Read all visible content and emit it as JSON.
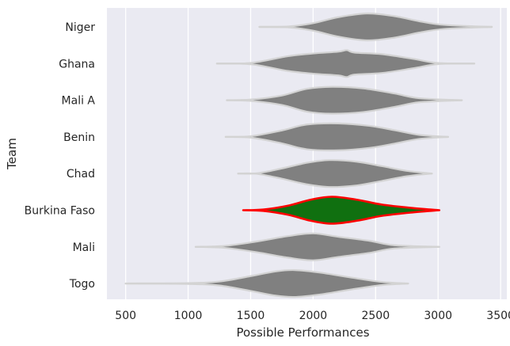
{
  "chart_data": {
    "type": "violin",
    "xlabel": "Possible Performances",
    "ylabel": "Team",
    "xlim": [
      350,
      3550
    ],
    "xticks": [
      500,
      1000,
      1500,
      2000,
      2500,
      3000,
      3500
    ],
    "grid": true,
    "colors": {
      "background": "#eaeaf2",
      "grid": "#ffffff",
      "violin_fill": "#808080",
      "violin_edge": "#d3d3d3",
      "highlight_fill": "#107010",
      "highlight_edge": "#ff0000"
    },
    "violins": [
      {
        "team": "Niger",
        "min": 1570,
        "max": 3430,
        "mode": 2430,
        "highlight": false,
        "profile": [
          [
            1570,
            0.0
          ],
          [
            1800,
            0.03
          ],
          [
            2000,
            0.28
          ],
          [
            2200,
            0.72
          ],
          [
            2430,
            1.0
          ],
          [
            2650,
            0.8
          ],
          [
            2850,
            0.42
          ],
          [
            3050,
            0.15
          ],
          [
            3430,
            0.0
          ]
        ]
      },
      {
        "team": "Ghana",
        "min": 1230,
        "max": 3290,
        "mode": 2270,
        "highlight": false,
        "profile": [
          [
            1230,
            0.0
          ],
          [
            1500,
            0.05
          ],
          [
            1800,
            0.55
          ],
          [
            2000,
            0.75
          ],
          [
            2200,
            0.88
          ],
          [
            2270,
            1.0
          ],
          [
            2330,
            0.82
          ],
          [
            2550,
            0.7
          ],
          [
            2800,
            0.35
          ],
          [
            3000,
            0.04
          ],
          [
            3290,
            0.0
          ]
        ]
      },
      {
        "team": "Mali A",
        "min": 1310,
        "max": 3190,
        "mode": 2150,
        "highlight": false,
        "profile": [
          [
            1310,
            0.0
          ],
          [
            1500,
            0.05
          ],
          [
            1750,
            0.35
          ],
          [
            1950,
            0.85
          ],
          [
            2150,
            1.0
          ],
          [
            2400,
            0.88
          ],
          [
            2650,
            0.5
          ],
          [
            2850,
            0.15
          ],
          [
            3190,
            0.0
          ]
        ]
      },
      {
        "team": "Benin",
        "min": 1300,
        "max": 3080,
        "mode": 2200,
        "highlight": false,
        "profile": [
          [
            1300,
            0.0
          ],
          [
            1500,
            0.05
          ],
          [
            1750,
            0.48
          ],
          [
            1950,
            0.92
          ],
          [
            2200,
            1.0
          ],
          [
            2450,
            0.82
          ],
          [
            2650,
            0.5
          ],
          [
            2850,
            0.15
          ],
          [
            3080,
            0.0
          ]
        ]
      },
      {
        "team": "Chad",
        "min": 1400,
        "max": 2950,
        "mode": 2130,
        "highlight": false,
        "profile": [
          [
            1400,
            0.0
          ],
          [
            1550,
            0.02
          ],
          [
            1750,
            0.38
          ],
          [
            1950,
            0.8
          ],
          [
            2130,
            1.0
          ],
          [
            2350,
            0.88
          ],
          [
            2550,
            0.55
          ],
          [
            2750,
            0.2
          ],
          [
            2950,
            0.0
          ]
        ]
      },
      {
        "team": "Burkina Faso",
        "min": 1440,
        "max": 3010,
        "mode": 2150,
        "highlight": true,
        "profile": [
          [
            1440,
            0.0
          ],
          [
            1600,
            0.05
          ],
          [
            1800,
            0.34
          ],
          [
            1980,
            0.78
          ],
          [
            2150,
            1.0
          ],
          [
            2350,
            0.78
          ],
          [
            2550,
            0.42
          ],
          [
            2800,
            0.16
          ],
          [
            3010,
            0.0
          ]
        ]
      },
      {
        "team": "Mali",
        "min": 1060,
        "max": 3010,
        "mode": 2000,
        "highlight": false,
        "profile": [
          [
            1060,
            0.0
          ],
          [
            1300,
            0.08
          ],
          [
            1550,
            0.4
          ],
          [
            1800,
            0.8
          ],
          [
            2000,
            1.0
          ],
          [
            2200,
            0.75
          ],
          [
            2450,
            0.45
          ],
          [
            2650,
            0.12
          ],
          [
            3010,
            0.0
          ]
        ]
      },
      {
        "team": "Togo",
        "min": 500,
        "max": 2760,
        "mode": 1850,
        "highlight": false,
        "profile": [
          [
            500,
            0.0
          ],
          [
            1000,
            0.03
          ],
          [
            1250,
            0.15
          ],
          [
            1500,
            0.55
          ],
          [
            1700,
            0.9
          ],
          [
            1850,
            1.0
          ],
          [
            2050,
            0.82
          ],
          [
            2300,
            0.45
          ],
          [
            2550,
            0.12
          ],
          [
            2760,
            0.0
          ]
        ]
      }
    ]
  }
}
